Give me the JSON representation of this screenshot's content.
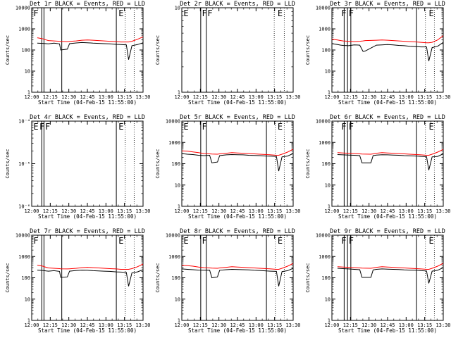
{
  "colors": {
    "events": "#000000",
    "lld": "#ff0000",
    "axes": "#000000",
    "background": "#ffffff"
  },
  "chart_data": [
    {
      "type": "line",
      "title": "Det 1r BLACK = Events, RED = LLD",
      "xlabel": "Start Time (04-Feb-15 11:55:00)",
      "ylabel": "Counts/sec",
      "yscale": "log",
      "xlim": [
        0,
        100
      ],
      "ylim": [
        1,
        10000
      ],
      "ytick_values": [
        1,
        10,
        100,
        1000,
        10000
      ],
      "ytick_labels": [
        "1",
        "10",
        "100",
        "1000",
        "10000"
      ],
      "xticks": [
        "12:00",
        "12:15",
        "12:30",
        "12:45",
        "13:00",
        "13:15",
        "13:30"
      ],
      "solid_vlines": [
        9,
        11,
        27,
        76
      ],
      "dotted_vlines": [
        84,
        92
      ],
      "markers": [
        {
          "x": 1.5,
          "label": "F"
        },
        {
          "x": 78,
          "label": "E"
        }
      ],
      "x": [
        5,
        10,
        13,
        15,
        20,
        25,
        26,
        32,
        34,
        40,
        45,
        50,
        55,
        60,
        65,
        70,
        76,
        80,
        85,
        87,
        90,
        95,
        100
      ],
      "series": [
        {
          "name": "BLACK = Events",
          "y": [
            210,
            205,
            200,
            195,
            210,
            195,
            100,
            110,
            200,
            215,
            225,
            220,
            210,
            205,
            200,
            195,
            185,
            180,
            175,
            35,
            160,
            180,
            220
          ]
        },
        {
          "name": "RED = LLD",
          "y": [
            380,
            340,
            300,
            280,
            270,
            260,
            255,
            250,
            255,
            270,
            290,
            300,
            290,
            280,
            270,
            260,
            250,
            240,
            240,
            240,
            260,
            320,
            420
          ]
        }
      ]
    },
    {
      "type": "line",
      "title": "Det 2r BLACK = Events, RED = LLD",
      "xlabel": "Start Time (04-Feb-15 11:55:00)",
      "ylabel": "Counts/sec",
      "yscale": "log",
      "xlim": [
        0,
        100
      ],
      "ylim": [
        1,
        10
      ],
      "ytick_values": [
        1,
        10
      ],
      "ytick_labels": [
        "1",
        "10"
      ],
      "xticks": [
        "12:00",
        "12:15",
        "12:30",
        "12:45",
        "13:00",
        "13:15",
        "13:30"
      ],
      "solid_vlines": [
        17,
        22
      ],
      "dotted_vlines": [
        83,
        92
      ],
      "markers": [
        {
          "x": 1.5,
          "label": "E"
        },
        {
          "x": 18,
          "label": "F"
        },
        {
          "x": 23,
          "label": "F"
        },
        {
          "x": 86,
          "label": "E"
        }
      ],
      "x": [],
      "series": [
        {
          "name": "BLACK = Events",
          "y": []
        },
        {
          "name": "RED = LLD",
          "y": []
        }
      ]
    },
    {
      "type": "line",
      "title": "Det 3r BLACK = Events, RED = LLD",
      "xlabel": "Start Time (04-Feb-15 11:55:00)",
      "ylabel": "Counts/sec",
      "yscale": "log",
      "xlim": [
        0,
        100
      ],
      "ylim": [
        1,
        10000
      ],
      "ytick_values": [
        1,
        10,
        100,
        1000,
        10000
      ],
      "ytick_labels": [
        "1",
        "10",
        "100",
        "1000",
        "10000"
      ],
      "xticks": [
        "12:00",
        "12:15",
        "12:30",
        "12:45",
        "13:00",
        "13:15",
        "13:30"
      ],
      "solid_vlines": [
        11,
        14,
        17,
        76
      ],
      "dotted_vlines": [
        84,
        92
      ],
      "markers": [
        {
          "x": 8.5,
          "label": "F"
        },
        {
          "x": 15,
          "label": "F"
        },
        {
          "x": 87,
          "label": "E"
        }
      ],
      "x": [
        0,
        5,
        8,
        10,
        15,
        20,
        25,
        28,
        30,
        40,
        45,
        50,
        55,
        60,
        65,
        70,
        76,
        80,
        85,
        87,
        90,
        95,
        100
      ],
      "series": [
        {
          "name": "BLACK = Events",
          "y": [
            200,
            180,
            170,
            165,
            160,
            175,
            170,
            85,
            90,
            170,
            175,
            180,
            175,
            165,
            160,
            150,
            145,
            140,
            140,
            30,
            130,
            150,
            230
          ]
        },
        {
          "name": "RED = LLD",
          "y": [
            320,
            300,
            280,
            270,
            260,
            250,
            260,
            270,
            280,
            290,
            300,
            290,
            280,
            270,
            260,
            250,
            240,
            230,
            220,
            220,
            230,
            300,
            480
          ]
        }
      ]
    },
    {
      "type": "line",
      "title": "Det 4r BLACK = Events, RED = LLD",
      "xlabel": "Start Time (04-Feb-15 11:55:00)",
      "ylabel": "Counts/sec",
      "yscale": "log",
      "xlim": [
        0,
        100
      ],
      "ylim": [
        1e-06,
        0.0001
      ],
      "ytick_values": [
        1e-06,
        1e-05,
        0.0001
      ],
      "ytick_labels": [
        "10⁻⁶",
        "10⁻⁵",
        "10⁻⁴"
      ],
      "xticks": [
        "12:00",
        "12:15",
        "12:30",
        "12:45",
        "13:00",
        "13:15",
        "13:30"
      ],
      "solid_vlines": [
        9,
        11,
        76
      ],
      "dotted_vlines": [
        84,
        92
      ],
      "markers": [
        {
          "x": 1.5,
          "label": "E"
        },
        {
          "x": 7,
          "label": "F"
        },
        {
          "x": 12,
          "label": "F"
        },
        {
          "x": 78,
          "label": "E"
        }
      ],
      "x": [],
      "series": [
        {
          "name": "BLACK = Events",
          "y": []
        },
        {
          "name": "RED = LLD",
          "y": []
        }
      ]
    },
    {
      "type": "line",
      "title": "Det 5r BLACK = Events, RED = LLD",
      "xlabel": "Start Time (04-Feb-15 11:55:00)",
      "ylabel": "Counts/sec",
      "yscale": "log",
      "xlim": [
        0,
        100
      ],
      "ylim": [
        1,
        10000
      ],
      "ytick_values": [
        1,
        10,
        100,
        1000,
        10000
      ],
      "ytick_labels": [
        "1",
        "10",
        "100",
        "1000",
        "10000"
      ],
      "xticks": [
        "12:00",
        "12:15",
        "12:30",
        "12:45",
        "13:00",
        "13:15",
        "13:30"
      ],
      "solid_vlines": [
        17,
        22,
        76
      ],
      "dotted_vlines": [
        84,
        92
      ],
      "markers": [
        {
          "x": 1.5,
          "label": "E"
        },
        {
          "x": 18,
          "label": "F"
        },
        {
          "x": 86,
          "label": "E"
        }
      ],
      "x": [
        0,
        5,
        10,
        15,
        20,
        25,
        27,
        32,
        34,
        40,
        45,
        50,
        55,
        60,
        65,
        70,
        76,
        80,
        85,
        87,
        90,
        95,
        100
      ],
      "series": [
        {
          "name": "BLACK = Events",
          "y": [
            300,
            280,
            270,
            250,
            240,
            250,
            110,
            120,
            240,
            260,
            270,
            265,
            260,
            250,
            245,
            240,
            230,
            225,
            220,
            45,
            210,
            230,
            300
          ]
        },
        {
          "name": "RED = LLD",
          "y": [
            400,
            390,
            360,
            330,
            300,
            290,
            285,
            280,
            290,
            310,
            330,
            320,
            310,
            300,
            290,
            280,
            270,
            260,
            250,
            250,
            280,
            350,
            480
          ]
        }
      ]
    },
    {
      "type": "line",
      "title": "Det 6r BLACK = Events, RED = LLD",
      "xlabel": "Start Time (04-Feb-15 11:55:00)",
      "ylabel": "Counts/sec",
      "yscale": "log",
      "xlim": [
        0,
        100
      ],
      "ylim": [
        1,
        10000
      ],
      "ytick_values": [
        1,
        10,
        100,
        1000,
        10000
      ],
      "ytick_labels": [
        "1",
        "10",
        "100",
        "1000",
        "10000"
      ],
      "xticks": [
        "12:00",
        "12:15",
        "12:30",
        "12:45",
        "13:00",
        "13:15",
        "13:30"
      ],
      "solid_vlines": [
        11,
        14,
        17,
        76
      ],
      "dotted_vlines": [
        84,
        92
      ],
      "markers": [
        {
          "x": 8.5,
          "label": "F"
        },
        {
          "x": 15,
          "label": "F"
        },
        {
          "x": 87,
          "label": "E"
        }
      ],
      "x": [
        5,
        10,
        15,
        20,
        25,
        27,
        35,
        37,
        40,
        45,
        50,
        55,
        60,
        65,
        70,
        76,
        80,
        85,
        87,
        90,
        95,
        100
      ],
      "series": [
        {
          "name": "BLACK = Events",
          "y": [
            270,
            260,
            255,
            250,
            240,
            110,
            110,
            240,
            255,
            265,
            260,
            255,
            250,
            240,
            235,
            230,
            220,
            215,
            50,
            210,
            220,
            290
          ]
        },
        {
          "name": "RED = LLD",
          "y": [
            330,
            320,
            310,
            300,
            290,
            285,
            280,
            290,
            310,
            330,
            320,
            310,
            300,
            290,
            280,
            270,
            260,
            250,
            250,
            280,
            350,
            470
          ]
        }
      ]
    },
    {
      "type": "line",
      "title": "Det 7r BLACK = Events, RED = LLD",
      "xlabel": "Start Time (04-Feb-15 11:55:00)",
      "ylabel": "Counts/sec",
      "yscale": "log",
      "xlim": [
        0,
        100
      ],
      "ylim": [
        1,
        10000
      ],
      "ytick_values": [
        1,
        10,
        100,
        1000,
        10000
      ],
      "ytick_labels": [
        "1",
        "10",
        "100",
        "1000",
        "10000"
      ],
      "xticks": [
        "12:00",
        "12:15",
        "12:30",
        "12:45",
        "13:00",
        "13:15",
        "13:30"
      ],
      "solid_vlines": [
        9,
        11,
        27,
        76
      ],
      "dotted_vlines": [
        84,
        92
      ],
      "markers": [
        {
          "x": 1.5,
          "label": "F"
        },
        {
          "x": 78,
          "label": "E"
        }
      ],
      "x": [
        5,
        10,
        13,
        15,
        20,
        25,
        26,
        32,
        34,
        40,
        45,
        50,
        55,
        60,
        65,
        70,
        76,
        80,
        85,
        87,
        90,
        95,
        100
      ],
      "series": [
        {
          "name": "BLACK = Events",
          "y": [
            230,
            220,
            210,
            205,
            215,
            200,
            105,
            110,
            205,
            220,
            230,
            225,
            215,
            210,
            205,
            200,
            190,
            185,
            180,
            40,
            170,
            190,
            240
          ]
        },
        {
          "name": "RED = LLD",
          "y": [
            390,
            350,
            310,
            290,
            280,
            270,
            265,
            260,
            265,
            280,
            300,
            310,
            300,
            290,
            280,
            270,
            260,
            250,
            250,
            250,
            270,
            330,
            440
          ]
        }
      ]
    },
    {
      "type": "line",
      "title": "Det 8r BLACK = Events, RED = LLD",
      "xlabel": "Start Time (04-Feb-15 11:55:00)",
      "ylabel": "Counts/sec",
      "yscale": "log",
      "xlim": [
        0,
        100
      ],
      "ylim": [
        1,
        10000
      ],
      "ytick_values": [
        1,
        10,
        100,
        1000,
        10000
      ],
      "ytick_labels": [
        "1",
        "10",
        "100",
        "1000",
        "10000"
      ],
      "xticks": [
        "12:00",
        "12:15",
        "12:30",
        "12:45",
        "13:00",
        "13:15",
        "13:30"
      ],
      "solid_vlines": [
        17,
        22,
        76
      ],
      "dotted_vlines": [
        84,
        92
      ],
      "markers": [
        {
          "x": 1.5,
          "label": "E"
        },
        {
          "x": 18,
          "label": "F"
        },
        {
          "x": 86,
          "label": "E"
        }
      ],
      "x": [
        0,
        5,
        10,
        15,
        20,
        25,
        27,
        32,
        34,
        40,
        45,
        50,
        55,
        60,
        65,
        70,
        76,
        80,
        85,
        87,
        90,
        95,
        100
      ],
      "series": [
        {
          "name": "BLACK = Events",
          "y": [
            260,
            250,
            240,
            230,
            225,
            230,
            100,
            110,
            225,
            240,
            250,
            245,
            240,
            235,
            225,
            220,
            210,
            205,
            200,
            40,
            195,
            215,
            280
          ]
        },
        {
          "name": "RED = LLD",
          "y": [
            380,
            370,
            350,
            320,
            300,
            290,
            285,
            280,
            290,
            310,
            330,
            320,
            310,
            300,
            290,
            280,
            270,
            260,
            250,
            250,
            280,
            350,
            470
          ]
        }
      ]
    },
    {
      "type": "line",
      "title": "Det 9r BLACK = Events, RED = LLD",
      "xlabel": "Start Time (04-Feb-15 11:55:00)",
      "ylabel": "Counts/sec",
      "yscale": "log",
      "xlim": [
        0,
        100
      ],
      "ylim": [
        1,
        10000
      ],
      "ytick_values": [
        1,
        10,
        100,
        1000,
        10000
      ],
      "ytick_labels": [
        "1",
        "10",
        "100",
        "1000",
        "10000"
      ],
      "xticks": [
        "12:00",
        "12:15",
        "12:30",
        "12:45",
        "13:00",
        "13:15",
        "13:30"
      ],
      "solid_vlines": [
        11,
        14,
        17,
        76
      ],
      "dotted_vlines": [
        84,
        92
      ],
      "markers": [
        {
          "x": 8.5,
          "label": "F"
        },
        {
          "x": 15,
          "label": "F"
        },
        {
          "x": 87,
          "label": "E"
        }
      ],
      "x": [
        5,
        10,
        15,
        20,
        25,
        27,
        35,
        37,
        40,
        45,
        50,
        55,
        60,
        65,
        70,
        76,
        80,
        85,
        87,
        90,
        95,
        100
      ],
      "series": [
        {
          "name": "BLACK = Events",
          "y": [
            280,
            270,
            260,
            250,
            240,
            105,
            105,
            235,
            250,
            260,
            255,
            250,
            245,
            235,
            230,
            225,
            215,
            210,
            55,
            205,
            225,
            300
          ]
        },
        {
          "name": "RED = LLD",
          "y": [
            330,
            320,
            310,
            300,
            290,
            285,
            280,
            290,
            310,
            330,
            320,
            310,
            300,
            290,
            280,
            270,
            260,
            250,
            250,
            280,
            350,
            480
          ]
        }
      ]
    }
  ]
}
